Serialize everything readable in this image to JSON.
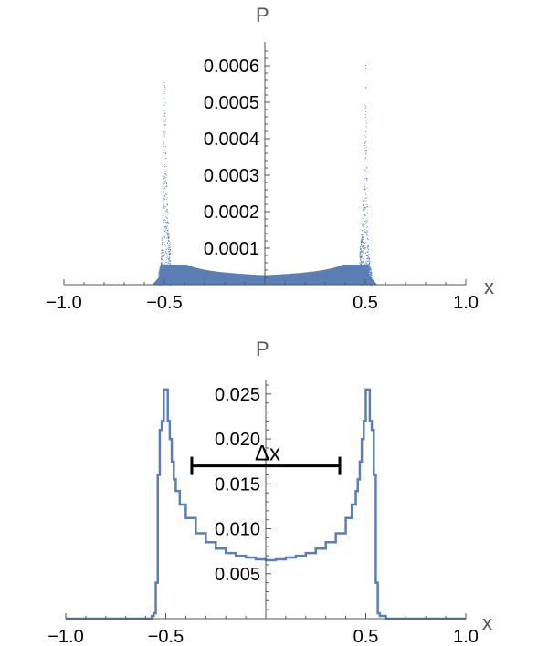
{
  "colors": {
    "series": "#5b7fb5",
    "axis": "#555555",
    "marker": "#000000"
  },
  "chart_data": [
    {
      "type": "scatter",
      "xlabel": "x",
      "ylabel": "P",
      "xlim": [
        -1.0,
        1.0
      ],
      "ylim": [
        0,
        0.00065
      ],
      "x_ticks": [
        -1.0,
        -0.5,
        0.5,
        1.0
      ],
      "x_tick_labels": [
        "−1.0",
        "−0.5",
        "0.5",
        "1.0"
      ],
      "y_ticks": [
        0.0001,
        0.0002,
        0.0003,
        0.0004,
        0.0005,
        0.0006
      ],
      "y_tick_labels": [
        "0.0001",
        "0.0002",
        "0.0003",
        "0.0004",
        "0.0005",
        "0.0006"
      ],
      "series": [
        {
          "x": [
            -0.56,
            -0.55,
            -0.54,
            -0.53,
            -0.52,
            -0.51,
            -0.5,
            -0.49,
            -0.48,
            -0.47,
            -0.45,
            -0.4,
            -0.3,
            -0.2,
            -0.1,
            0.0,
            0.1,
            0.2,
            0.3,
            0.4,
            0.45,
            0.47,
            0.48,
            0.49,
            0.5,
            0.51,
            0.52,
            0.53,
            0.54,
            0.55,
            0.56
          ],
          "y": [
            2e-06,
            8e-06,
            1.5e-05,
            3.5e-05,
            6e-05,
            0.00015,
            0.00063,
            0.0003,
            0.00014,
            0.0001,
            7e-05,
            5e-05,
            3.5e-05,
            3e-05,
            2.7e-05,
            2.6e-05,
            2.7e-05,
            3e-05,
            3.5e-05,
            5e-05,
            7e-05,
            0.0001,
            0.00014,
            0.0003,
            0.00063,
            0.00015,
            6e-05,
            3.5e-05,
            1.5e-05,
            8e-06,
            2e-06
          ]
        }
      ]
    },
    {
      "type": "line",
      "xlabel": "x",
      "ylabel": "P",
      "xlim": [
        -1.0,
        1.0
      ],
      "ylim": [
        0,
        0.026
      ],
      "x_ticks": [
        -1.0,
        -0.5,
        0.5,
        1.0
      ],
      "x_tick_labels": [
        "−1.0",
        "−0.5",
        "0.5",
        "1.0"
      ],
      "y_ticks": [
        0.005,
        0.01,
        0.015,
        0.02,
        0.025
      ],
      "y_tick_labels": [
        "0.005",
        "0.010",
        "0.015",
        "0.020",
        "0.025"
      ],
      "series": [
        {
          "x": [
            -1.0,
            -0.6,
            -0.57,
            -0.56,
            -0.55,
            -0.54,
            -0.53,
            -0.52,
            -0.51,
            -0.5,
            -0.49,
            -0.48,
            -0.47,
            -0.46,
            -0.45,
            -0.43,
            -0.4,
            -0.35,
            -0.3,
            -0.25,
            -0.2,
            -0.15,
            -0.1,
            -0.05,
            0.0,
            0.05,
            0.1,
            0.15,
            0.2,
            0.25,
            0.3,
            0.35,
            0.4,
            0.43,
            0.45,
            0.46,
            0.47,
            0.48,
            0.49,
            0.5,
            0.51,
            0.52,
            0.53,
            0.54,
            0.55,
            0.56,
            0.57,
            0.6,
            1.0
          ],
          "y": [
            0.0,
            0.0,
            0.0003,
            0.0006,
            0.004,
            0.016,
            0.021,
            0.022,
            0.0255,
            0.0255,
            0.022,
            0.02,
            0.0175,
            0.0155,
            0.0142,
            0.0127,
            0.0112,
            0.0095,
            0.0085,
            0.0078,
            0.0073,
            0.007,
            0.0068,
            0.0066,
            0.0065,
            0.0066,
            0.0068,
            0.007,
            0.0073,
            0.0078,
            0.0085,
            0.0095,
            0.0112,
            0.0127,
            0.0142,
            0.0155,
            0.0175,
            0.02,
            0.022,
            0.0255,
            0.0255,
            0.022,
            0.021,
            0.016,
            0.004,
            0.0006,
            0.0003,
            0.0,
            0.0
          ]
        }
      ],
      "annotations": [
        {
          "text": "Δx",
          "type": "interval",
          "x_start": -0.37,
          "x_end": 0.37,
          "y": 0.017
        }
      ]
    }
  ]
}
